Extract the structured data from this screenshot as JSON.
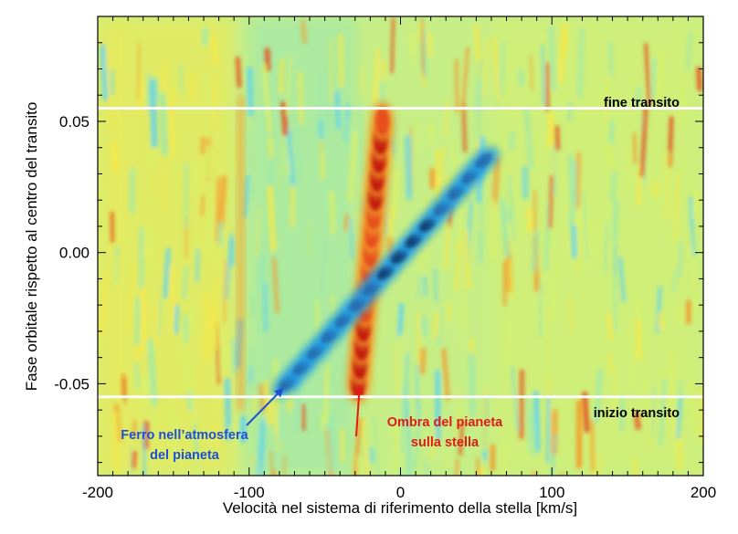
{
  "chart_data": {
    "type": "heatmap",
    "xlabel": "Velocità nel sistema di riferimento della stella [km/s]",
    "ylabel": "Fase orbitale rispetto al centro del transito",
    "xlim": [
      -200,
      200
    ],
    "ylim": [
      -0.085,
      0.09
    ],
    "x_ticks": [
      {
        "value": -200,
        "label": "-200"
      },
      {
        "value": -100,
        "label": "-100"
      },
      {
        "value": 0,
        "label": "0"
      },
      {
        "value": 100,
        "label": "100"
      },
      {
        "value": 200,
        "label": "200"
      }
    ],
    "y_ticks": [
      {
        "value": -0.05,
        "label": "-0.05"
      },
      {
        "value": 0.0,
        "label": "0.00"
      },
      {
        "value": 0.05,
        "label": "0.05"
      }
    ],
    "colormap": [
      "#08306b",
      "#2166ac",
      "#1e9be8",
      "#5fd3f0",
      "#9be8b0",
      "#d9f06a",
      "#f5e94a",
      "#f39a2b",
      "#e64b1d",
      "#c0120c"
    ],
    "grid": false,
    "annotations": [
      {
        "name": "end-of-transit",
        "text": "fine transito",
        "phase": 0.055,
        "color": "#000000"
      },
      {
        "name": "start-of-transit",
        "text": "inizio transito",
        "phase": -0.055,
        "color": "#000000"
      },
      {
        "name": "iron-annotation",
        "text": [
          "Ferro nell’atmosfera",
          "del pianeta"
        ],
        "color": "#1f4fd6",
        "target": {
          "x": -78,
          "y": -0.052
        }
      },
      {
        "name": "shadow-annotation",
        "text": [
          "Ombra del pianeta",
          "sulla stella"
        ],
        "color": "#e11a1a",
        "target": {
          "x": -27,
          "y": -0.051
        }
      }
    ],
    "features": [
      {
        "name": "planet-shadow-track",
        "signal": "positive",
        "from": {
          "x": -28,
          "y": -0.05
        },
        "to": {
          "x": -12,
          "y": 0.05
        }
      },
      {
        "name": "iron-absorption-track",
        "signal": "negative",
        "from": {
          "x": -75,
          "y": -0.05
        },
        "to": {
          "x": 55,
          "y": 0.035
        }
      }
    ]
  }
}
